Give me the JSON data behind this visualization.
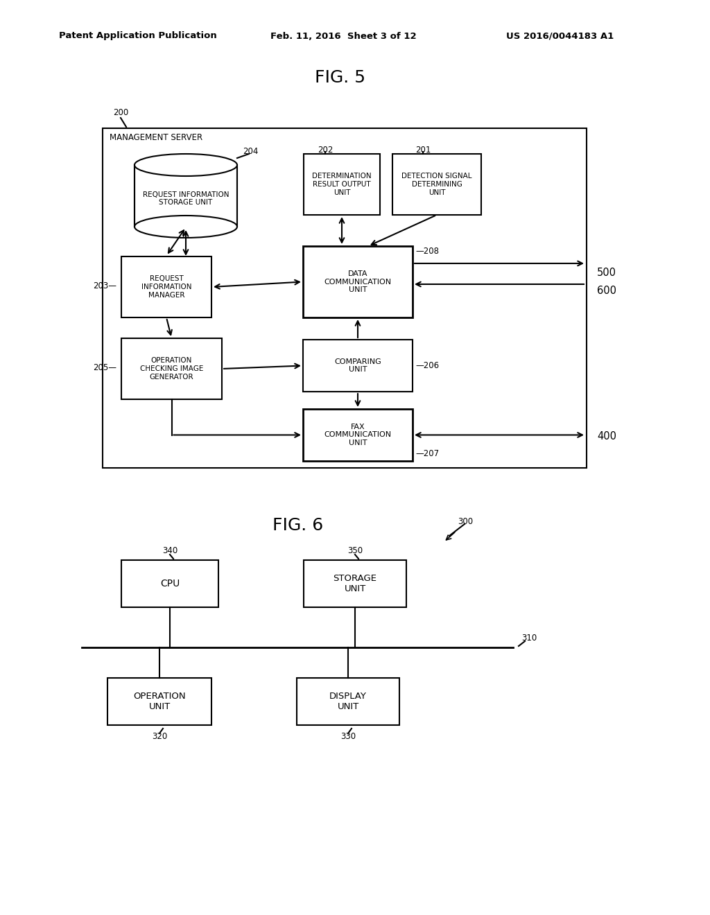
{
  "bg_color": "#ffffff",
  "header_left": "Patent Application Publication",
  "header_center": "Feb. 11, 2016  Sheet 3 of 12",
  "header_right": "US 2016/0044183 A1"
}
